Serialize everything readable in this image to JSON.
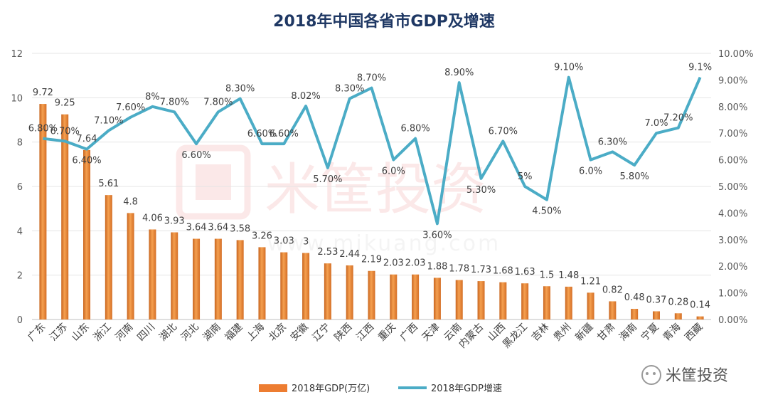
{
  "chart_data": {
    "type": "bar+line",
    "title": "2018年中国各省市GDP及增速",
    "categories": [
      "广东",
      "江苏",
      "山东",
      "浙江",
      "河南",
      "四川",
      "湖北",
      "河北",
      "湖南",
      "福建",
      "上海",
      "北京",
      "安徽",
      "辽宁",
      "陕西",
      "江西",
      "重庆",
      "广西",
      "天津",
      "云南",
      "内蒙古",
      "山西",
      "黑龙江",
      "吉林",
      "贵州",
      "新疆",
      "甘肃",
      "海南",
      "宁夏",
      "青海",
      "西藏"
    ],
    "series": [
      {
        "name": "2018年GDP(万亿)",
        "type": "bar",
        "axis": "left",
        "color": "#ED7D31",
        "values": [
          9.72,
          9.25,
          7.64,
          5.61,
          4.8,
          4.06,
          3.93,
          3.64,
          3.64,
          3.58,
          3.26,
          3.03,
          3,
          2.53,
          2.44,
          2.19,
          2.03,
          2.03,
          1.88,
          1.78,
          1.73,
          1.68,
          1.63,
          1.5,
          1.48,
          1.21,
          0.82,
          0.48,
          0.37,
          0.28,
          0.14
        ],
        "labels": [
          "9.72",
          "9.25",
          "7.64",
          "5.61",
          "4.8",
          "4.06",
          "3.93",
          "3.64",
          "3.64",
          "3.58",
          "3.26",
          "3.03",
          "3",
          "2.53",
          "2.44",
          "2.19",
          "2.03",
          "2.03",
          "1.88",
          "1.78",
          "1.73",
          "1.68",
          "1.63",
          "1.5",
          "1.48",
          "1.21",
          "0.82",
          "0.48",
          "0.37",
          "0.28",
          "0.14"
        ]
      },
      {
        "name": "2018年GDP增速",
        "type": "line",
        "axis": "right",
        "color": "#4BACC6",
        "values": [
          6.8,
          6.7,
          6.4,
          7.1,
          7.6,
          8.0,
          7.8,
          6.6,
          7.8,
          8.3,
          6.6,
          6.6,
          8.02,
          5.7,
          8.3,
          8.7,
          6.0,
          6.8,
          3.6,
          8.9,
          5.3,
          6.7,
          5.0,
          4.5,
          9.1,
          6.0,
          6.3,
          5.8,
          7.0,
          7.2,
          9.1
        ],
        "labels": [
          "6.80%",
          "6.70%",
          "6.40%",
          "7.10%",
          "7.60%",
          "8%",
          "7.80%",
          "6.60%",
          "7.80%",
          "8.30%",
          "6.60%",
          "6.60%",
          "8.02%",
          "5.70%",
          "8.30%",
          "8.70%",
          "6.0%",
          "6.80%",
          "3.60%",
          "8.90%",
          "5.30%",
          "6.70%",
          "5%",
          "4.50%",
          "9.10%",
          "6.0%",
          "6.30%",
          "5.80%",
          "7.0%",
          "7.20%",
          "9.1%"
        ]
      }
    ],
    "y_left": {
      "min": 0,
      "max": 12,
      "ticks": [
        "0",
        "2",
        "4",
        "6",
        "8",
        "10",
        "12"
      ]
    },
    "y_right": {
      "min": 0,
      "max": 10,
      "ticks": [
        "0.00%",
        "1.00%",
        "2.00%",
        "3.00%",
        "4.00%",
        "5.00%",
        "6.00%",
        "7.00%",
        "8.00%",
        "9.00%",
        "10.00%"
      ]
    },
    "grid": true,
    "legend_position": "bottom"
  },
  "watermark": {
    "brand": "米筐投资",
    "url": "www.mikuang.com"
  },
  "footer_logo": {
    "text": "米筐投资"
  }
}
